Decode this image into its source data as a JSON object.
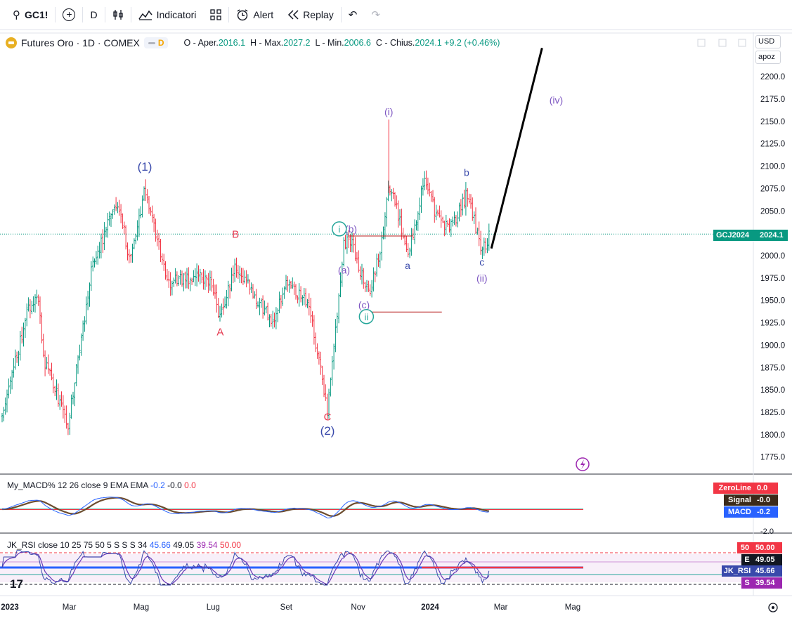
{
  "toolbar": {
    "symbol": "GC1!",
    "interval": "D",
    "indicators_label": "Indicatori",
    "alert_label": "Alert",
    "replay_label": "Replay"
  },
  "legend": {
    "title": "Futures Oro · 1D · COMEX",
    "interval_badge": "D",
    "open_label": "O - Aper.",
    "open": "2016.1",
    "high_label": "H - Max.",
    "high": "2027.2",
    "low_label": "L - Min.",
    "low": "2006.6",
    "close_label": "C - Chius.",
    "close": "2024.1",
    "change": "+9.2 (+0.46%)"
  },
  "currency": {
    "unit": "USD",
    "mode": "apoz"
  },
  "colors": {
    "up": "#089981",
    "down": "#f23645",
    "wave_primary": "#3949ab",
    "wave_minor": "#7e57c2",
    "wave_abc": "#e53950",
    "wave_circle": "#26a69a",
    "macd_line": "#2962ff",
    "signal_line": "#6d4c2e",
    "zero_line": "#089981",
    "rsi_line": "#673ab7",
    "rsi_ema": "#f23645",
    "rsi_mid": "#2962ff"
  },
  "chart_data": {
    "type": "candlestick",
    "x_ticks": [
      "2023",
      "Mar",
      "Mag",
      "Lug",
      "Set",
      "Nov",
      "2024",
      "Mar",
      "Mag"
    ],
    "y_ticks": [
      1775,
      1800,
      1825,
      1850,
      1875,
      1900,
      1925,
      1950,
      1975,
      2000,
      2025,
      2050,
      2075,
      2100,
      2125,
      2150,
      2175,
      2200
    ],
    "y_range": [
      1760,
      2222
    ],
    "last_price_tag": {
      "label": "GCJ2024",
      "value": "2024.1"
    },
    "anchors": [
      {
        "date": "2023-01-03",
        "price": 1820
      },
      {
        "date": "2023-01-25",
        "price": 1942
      },
      {
        "date": "2023-02-03",
        "price": 1950
      },
      {
        "date": "2023-02-07",
        "price": 1885
      },
      {
        "date": "2023-02-28",
        "price": 1812
      },
      {
        "date": "2023-03-20",
        "price": 1985
      },
      {
        "date": "2023-04-04",
        "price": 2040
      },
      {
        "date": "2023-04-13",
        "price": 2055
      },
      {
        "date": "2023-04-21",
        "price": 1995
      },
      {
        "date": "2023-05-04",
        "price": 2072
      },
      {
        "date": "2023-05-25",
        "price": 1965
      },
      {
        "date": "2023-06-02",
        "price": 1975
      },
      {
        "date": "2023-06-28",
        "price": 1975
      },
      {
        "date": "2023-07-07",
        "price": 1930
      },
      {
        "date": "2023-07-20",
        "price": 1988
      },
      {
        "date": "2023-08-21",
        "price": 1925
      },
      {
        "date": "2023-09-01",
        "price": 1968
      },
      {
        "date": "2023-09-20",
        "price": 1948
      },
      {
        "date": "2023-10-06",
        "price": 1827
      },
      {
        "date": "2023-10-20",
        "price": 2015
      },
      {
        "date": "2023-10-27",
        "price": 2012
      },
      {
        "date": "2023-11-10",
        "price": 1955
      },
      {
        "date": "2023-11-20",
        "price": 2010
      },
      {
        "date": "2023-11-27",
        "price": 2080
      },
      {
        "date": "2023-12-04",
        "price": 2052
      },
      {
        "date": "2023-12-13",
        "price": 1995
      },
      {
        "date": "2023-12-27",
        "price": 2085
      },
      {
        "date": "2024-01-05",
        "price": 2050
      },
      {
        "date": "2024-01-17",
        "price": 2028
      },
      {
        "date": "2024-02-02",
        "price": 2070
      },
      {
        "date": "2024-02-14",
        "price": 2003
      },
      {
        "date": "2024-02-21",
        "price": 2024
      }
    ],
    "wave_labels": [
      {
        "text": "(1)",
        "date": "2023-05-04",
        "price": 2095,
        "style": "primary"
      },
      {
        "text": "(2)",
        "date": "2023-10-06",
        "price": 1800,
        "style": "primary"
      },
      {
        "text": "A",
        "date": "2023-07-07",
        "price": 1911,
        "style": "abc"
      },
      {
        "text": "B",
        "date": "2023-07-20",
        "price": 2020,
        "style": "abc"
      },
      {
        "text": "C",
        "date": "2023-10-06",
        "price": 1816,
        "style": "abc"
      },
      {
        "text": "(i)",
        "date": "2023-11-27",
        "price": 2157,
        "style": "minor"
      },
      {
        "text": "(ii)",
        "date": "2024-02-14",
        "price": 1971,
        "style": "minor"
      },
      {
        "text": "(iv)",
        "date": "2024-04-17",
        "price": 2170,
        "style": "minor"
      },
      {
        "text": "(a)",
        "date": "2023-10-20",
        "price": 1980,
        "style": "minor"
      },
      {
        "text": "(b)",
        "date": "2023-10-26",
        "price": 2026,
        "style": "minor"
      },
      {
        "text": "(c)",
        "date": "2023-11-06",
        "price": 1941,
        "style": "minor"
      },
      {
        "text": "i",
        "date": "2023-10-16",
        "price": 2026,
        "style": "circle"
      },
      {
        "text": "ii",
        "date": "2023-11-08",
        "price": 1928,
        "style": "circle"
      },
      {
        "text": "a",
        "date": "2023-12-13",
        "price": 1985,
        "style": "primary"
      },
      {
        "text": "b",
        "date": "2024-02-01",
        "price": 2089,
        "style": "primary"
      },
      {
        "text": "c",
        "date": "2024-02-14",
        "price": 1989,
        "style": "primary"
      }
    ],
    "projection_line": {
      "from": {
        "date": "2024-02-22",
        "price": 2008
      },
      "to": {
        "date": "2024-04-05",
        "price": 2232
      }
    },
    "hlines": [
      {
        "price": 2022,
        "from": "2023-10-24",
        "to": "2023-12-17"
      },
      {
        "price": 1937,
        "from": "2023-11-04",
        "to": "2024-01-11"
      }
    ]
  },
  "macd": {
    "label_prefix": "My_MACD% 12 26 close 9 EMA EMA",
    "v1": "-0.2",
    "v2": "-0.0",
    "v3": "0.0",
    "y_tick": "-2.0",
    "zero_tag": {
      "label": "ZeroLine",
      "value": "0.0"
    },
    "signal_tag": {
      "label": "Signal",
      "value": "-0.0"
    },
    "macd_tag": {
      "label": "MACD",
      "value": "-0.2"
    }
  },
  "rsi": {
    "label_prefix": "JK_RSI close 10 25 75 50 5 S S S 34",
    "v1": "45.66",
    "v2": "49.05",
    "v3": "39.54",
    "v4": "50.00",
    "tag50": {
      "label": "50",
      "value": "50.00"
    },
    "tagE": {
      "label": "E",
      "value": "49.05"
    },
    "tagJK": {
      "label": "JK_RSI",
      "value": "45.66"
    },
    "tagS": {
      "label": "S",
      "value": "39.54"
    }
  }
}
